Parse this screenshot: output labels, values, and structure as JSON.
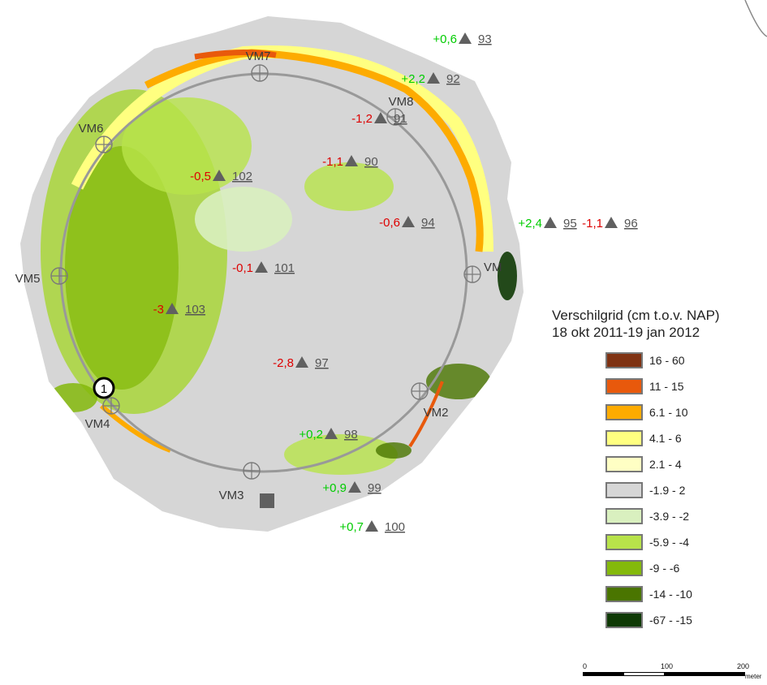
{
  "colors": {
    "grid_base": "#d6d6d6",
    "ring_stroke": "#999999",
    "marker": "#606060",
    "positive": "#00cc00",
    "negative": "#dd0000"
  },
  "legend": {
    "title_line1": "Verschilgrid (cm t.o.v. NAP)",
    "title_line2": "18 okt 2011-19 jan 2012",
    "classes": [
      {
        "label": "16 - 60",
        "color": "#7f3212"
      },
      {
        "label": "11 - 15",
        "color": "#e8590c"
      },
      {
        "label": "6.1 - 10",
        "color": "#fdab00"
      },
      {
        "label": "4.1 - 6",
        "color": "#ffff80"
      },
      {
        "label": "2.1 - 4",
        "color": "#ffffc4"
      },
      {
        "label": "-1.9 - 2",
        "color": "#d6d6d6"
      },
      {
        "label": "-3.9 - -2",
        "color": "#d9f0bf"
      },
      {
        "label": "-5.9 - -4",
        "color": "#b8e34a"
      },
      {
        "label": "-9 - -6",
        "color": "#84b90b"
      },
      {
        "label": "-14 - -10",
        "color": "#4a7500"
      },
      {
        "label": "-67 - -15",
        "color": "#0f3a05"
      }
    ]
  },
  "benchmarks": [
    {
      "name": "VM7"
    },
    {
      "name": "VM8"
    },
    {
      "name": "VM6"
    },
    {
      "name": "VM5"
    },
    {
      "name": "VM"
    },
    {
      "name": "VM4"
    },
    {
      "name": "VM3"
    },
    {
      "name": "VM2"
    }
  ],
  "points": [
    {
      "value": "+0,6",
      "id": "93"
    },
    {
      "value": "+2,2",
      "id": "92"
    },
    {
      "value": "-1,2",
      "id": "91"
    },
    {
      "value": "-1,1",
      "id": "90"
    },
    {
      "value": "-0,5",
      "id": "102"
    },
    {
      "value": "+2,4",
      "id": "95"
    },
    {
      "value": "-1,1",
      "id": "96"
    },
    {
      "value": "-0,6",
      "id": "94"
    },
    {
      "value": "-0,1",
      "id": "101"
    },
    {
      "value": "-3",
      "id": "103"
    },
    {
      "value": "-2,8",
      "id": "97"
    },
    {
      "value": "+0,2",
      "id": "98"
    },
    {
      "value": "+0,9",
      "id": "99"
    },
    {
      "value": "+0,7",
      "id": "100"
    }
  ],
  "callout": {
    "label": "1"
  },
  "scale": {
    "ticks": [
      "0",
      "100",
      "200"
    ],
    "unit": "meter"
  }
}
